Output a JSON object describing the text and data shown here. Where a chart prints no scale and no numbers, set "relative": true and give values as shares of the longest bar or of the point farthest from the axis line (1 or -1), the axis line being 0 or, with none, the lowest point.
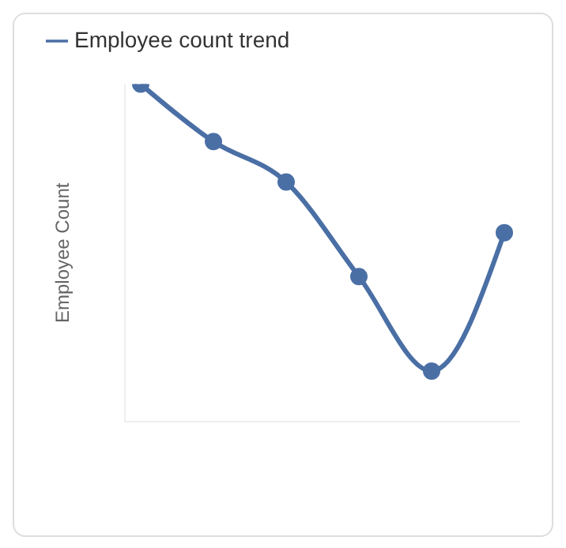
{
  "chart_data": {
    "type": "line",
    "relative": true,
    "ylabel": "Employee Count",
    "categories": [
      null,
      null,
      null,
      null,
      null,
      null
    ],
    "series": [
      {
        "name": "Employee count trend",
        "color": "#4a6fa5",
        "values": [
          1,
          0.83,
          0.71,
          0.43,
          0.15,
          0.56
        ]
      }
    ],
    "marker": "circle",
    "legend": "top left",
    "grid": false
  }
}
